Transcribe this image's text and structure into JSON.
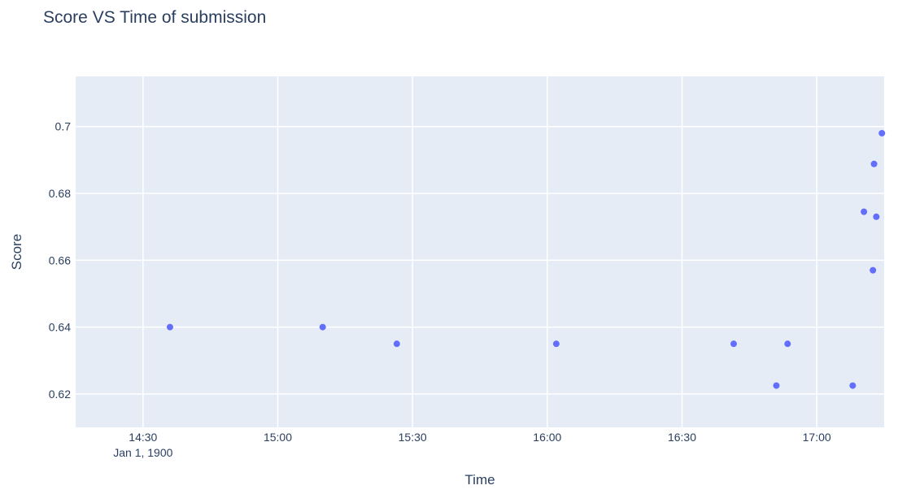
{
  "chart_data": {
    "type": "scatter",
    "title": "Score VS Time of submission",
    "xlabel": "Time",
    "ylabel": "Score",
    "x_date_annotation": "Jan 1, 1900",
    "x_ticks": [
      "14:30",
      "15:00",
      "15:30",
      "16:00",
      "16:30",
      "17:00"
    ],
    "y_ticks": [
      "0.62",
      "0.64",
      "0.66",
      "0.68",
      "0.7"
    ],
    "xlim": [
      "14:15",
      "17:15"
    ],
    "ylim": [
      0.61,
      0.715
    ],
    "grid": true,
    "plot_background": "#e5ecf6",
    "marker_color": "#636efa",
    "x": [
      "14:36",
      "15:10",
      "15:26:30",
      "16:02",
      "16:41:30",
      "16:51",
      "16:53:30",
      "17:08",
      "17:10:30",
      "17:12:30",
      "17:12:45",
      "17:13:15",
      "17:14:30"
    ],
    "y": [
      0.64,
      0.64,
      0.635,
      0.635,
      0.635,
      0.6225,
      0.635,
      0.6225,
      0.6745,
      0.657,
      0.6888,
      0.673,
      0.698
    ]
  }
}
